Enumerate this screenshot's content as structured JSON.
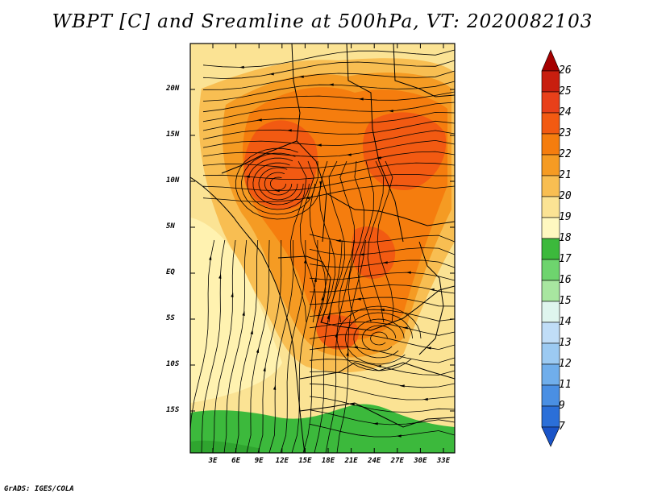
{
  "title": "WBPT [C] and Sreamline at 500hPa, VT: 2020082103",
  "footer": "GrADS: IGES/COLA",
  "axes": {
    "lat_labels": [
      "20N",
      "15N",
      "10N",
      "5N",
      "EQ",
      "5S",
      "10S",
      "15S"
    ],
    "lon_labels": [
      "3E",
      "6E",
      "9E",
      "12E",
      "15E",
      "18E",
      "21E",
      "24E",
      "27E",
      "30E",
      "33E"
    ]
  },
  "colorbar": {
    "labels": [
      "26",
      "25",
      "24",
      "23",
      "22",
      "21",
      "20",
      "19",
      "18",
      "17",
      "16",
      "15",
      "14",
      "13",
      "12",
      "11",
      "9",
      "7"
    ],
    "colors": [
      "#a50000",
      "#c81e0f",
      "#e8401a",
      "#f25a12",
      "#f57d0e",
      "#f59b23",
      "#f8be52",
      "#fbe394",
      "#fff8c0",
      "#3cb93c",
      "#6ed46e",
      "#a8e6a0",
      "#dff5ee",
      "#c0ddf7",
      "#9ccaf2",
      "#70aeeb",
      "#4a8fe3",
      "#2b6fd8",
      "#1a54c8"
    ]
  },
  "map": {
    "lat_range": [
      -19.5,
      24.5
    ],
    "lon_range": [
      0,
      34.5
    ],
    "field": "wet-bulb potential temperature",
    "level": "500hPa",
    "valid_time": "2020082103"
  }
}
